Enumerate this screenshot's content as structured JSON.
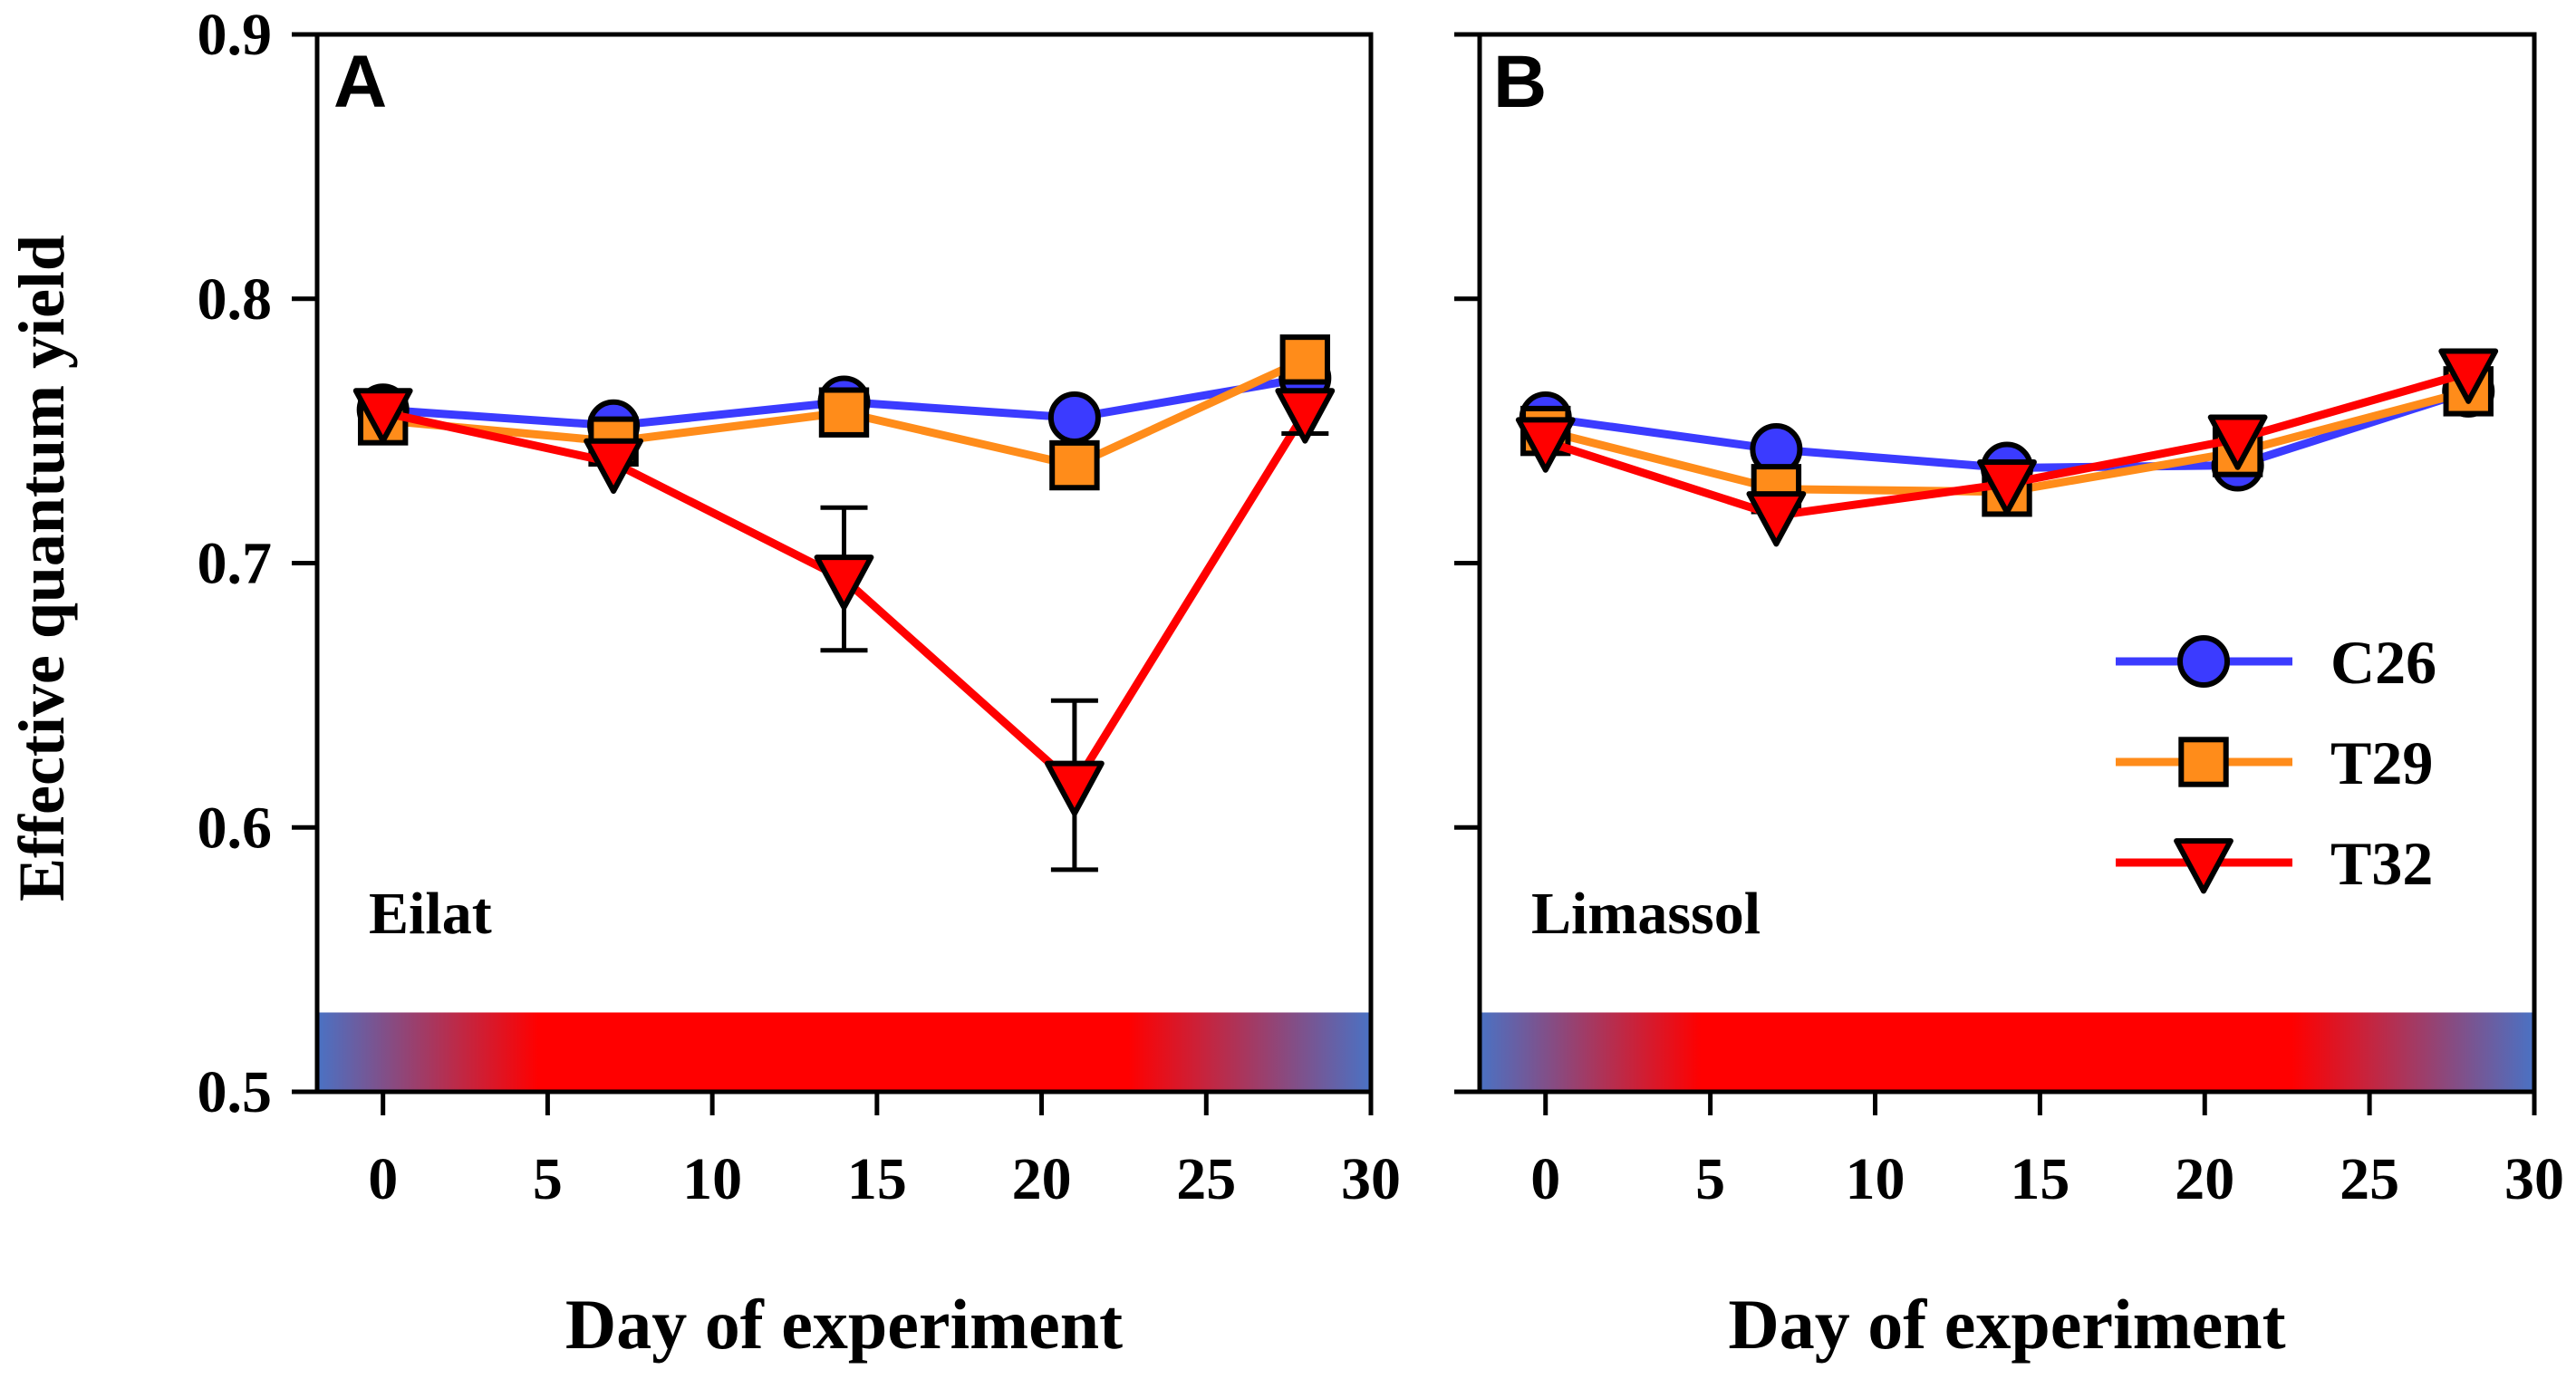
{
  "colors": {
    "C26": "#3b3bff",
    "T29": "#ff8c1a",
    "T32": "#ff0000",
    "bar_blue": "#4a72c4",
    "bar_red": "#ff0000"
  },
  "ylabel": "Effective quantum yield",
  "chart_data": [
    {
      "type": "line",
      "panel": "A",
      "site": "Eilat",
      "xlabel": "Day of experiment",
      "ylabel": "Effective quantum yield",
      "xlim": [
        -2,
        30
      ],
      "ylim": [
        0.5,
        0.9
      ],
      "xticks": [
        "0",
        "5",
        "10",
        "15",
        "20",
        "25",
        "30"
      ],
      "yticks": [
        "0.5",
        "0.6",
        "0.7",
        "0.8",
        "0.9"
      ],
      "x": [
        0,
        7,
        14,
        21,
        28
      ],
      "series": [
        {
          "name": "C26",
          "marker": "circle",
          "values": [
            0.758,
            0.752,
            0.761,
            0.755,
            0.77
          ],
          "errors": [
            0.004,
            0.004,
            0.004,
            0.004,
            0.004
          ]
        },
        {
          "name": "T29",
          "marker": "square",
          "values": [
            0.754,
            0.746,
            0.757,
            0.737,
            0.777
          ],
          "errors": [
            0.004,
            0.004,
            0.004,
            0.004,
            0.004
          ]
        },
        {
          "name": "T32",
          "marker": "triangle-down",
          "values": [
            0.757,
            0.738,
            0.694,
            0.616,
            0.757
          ],
          "errors": [
            0.004,
            0.005,
            0.027,
            0.032,
            0.008
          ]
        }
      ]
    },
    {
      "type": "line",
      "panel": "B",
      "site": "Limassol",
      "xlabel": "Day of experiment",
      "ylabel": "Effective quantum yield",
      "xlim": [
        -2,
        30
      ],
      "ylim": [
        0.5,
        0.9
      ],
      "xticks": [
        "0",
        "5",
        "10",
        "15",
        "20",
        "25",
        "30"
      ],
      "yticks": [
        "0.5",
        "0.6",
        "0.7",
        "0.8",
        "0.9"
      ],
      "x": [
        0,
        7,
        14,
        21,
        28
      ],
      "series": [
        {
          "name": "C26",
          "marker": "circle",
          "values": [
            0.755,
            0.743,
            0.736,
            0.737,
            0.765
          ],
          "errors": [
            0.004,
            0.004,
            0.004,
            0.004,
            0.004
          ]
        },
        {
          "name": "T29",
          "marker": "square",
          "values": [
            0.75,
            0.728,
            0.727,
            0.742,
            0.765
          ],
          "errors": [
            0.004,
            0.004,
            0.004,
            0.004,
            0.004
          ]
        },
        {
          "name": "T32",
          "marker": "triangle-down",
          "values": [
            0.746,
            0.718,
            0.73,
            0.747,
            0.772
          ],
          "errors": [
            0.004,
            0.004,
            0.004,
            0.004,
            0.004
          ]
        }
      ]
    }
  ],
  "legend": {
    "entries": [
      "C26",
      "T29",
      "T32"
    ],
    "placement": "right"
  }
}
